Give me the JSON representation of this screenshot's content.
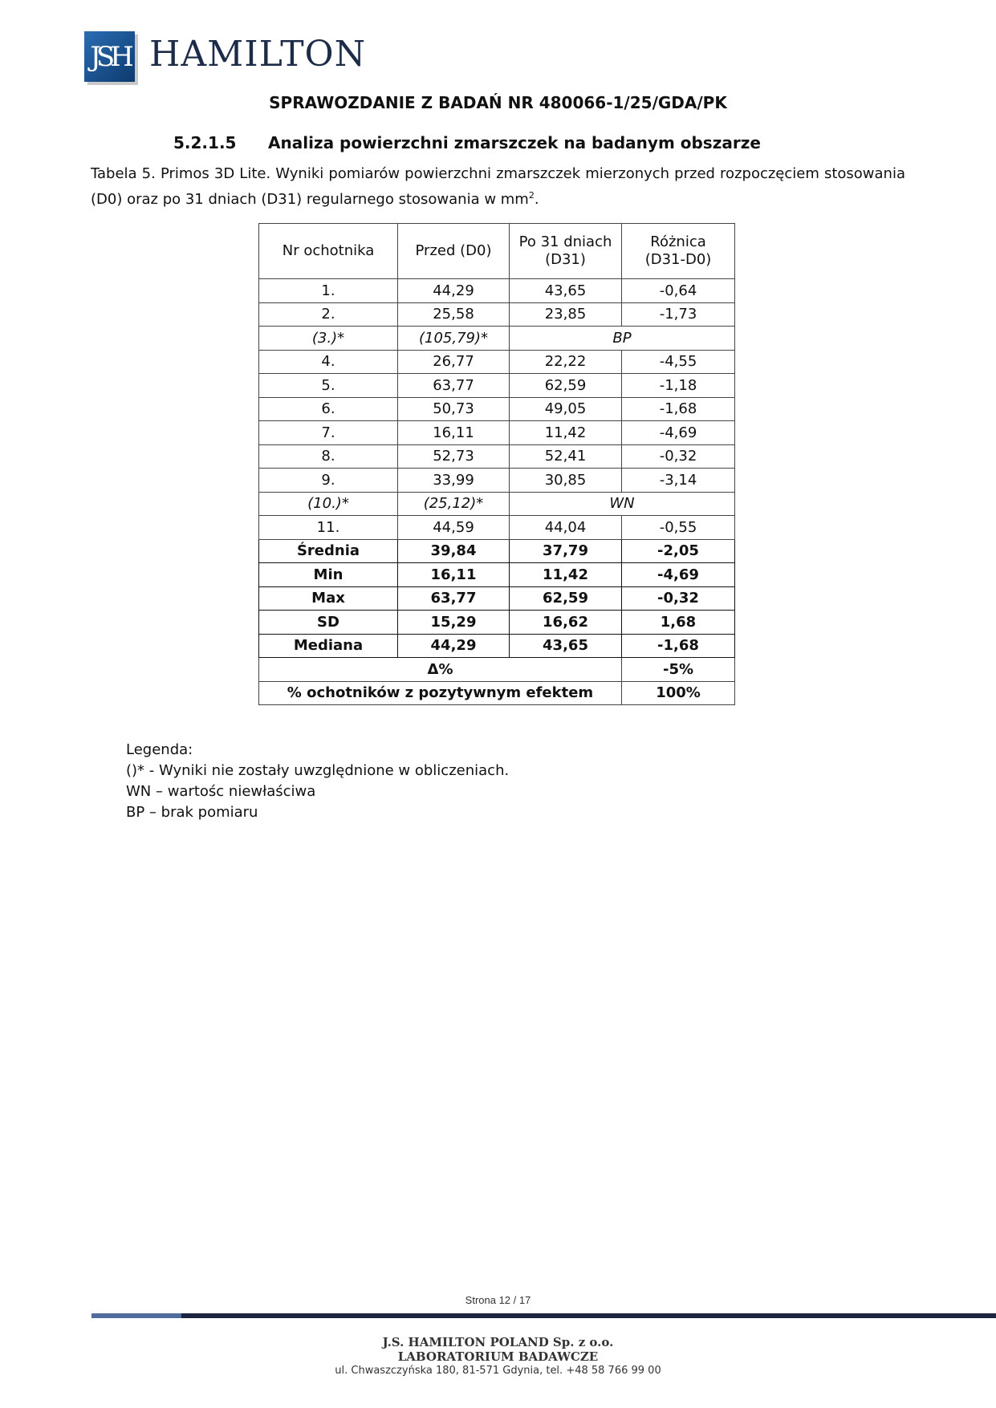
{
  "header": {
    "logo_mark": "JSH",
    "logo_text": "HAMILTON",
    "report_title": "SPRAWOZDANIE Z BADAŃ NR 480066-1/25/GDA/PK"
  },
  "section": {
    "number": "5.2.1.5",
    "title": "Analiza powierzchni zmarszczek na badanym obszarze"
  },
  "caption": {
    "text": "Tabela 5. Primos 3D Lite. Wyniki pomiarów powierzchni zmarszczek mierzonych przed rozpoczęciem stosowania (D0) oraz po 31 dniach (D31) regularnego stosowania w mm",
    "sup": "2",
    "end": "."
  },
  "table": {
    "headers": [
      [
        "Nr ochotnika"
      ],
      [
        "Przed (D0)"
      ],
      [
        "Po 31 dniach",
        "(D31)"
      ],
      [
        "Różnica",
        "(D31-D0)"
      ]
    ],
    "rows": [
      [
        "1.",
        "44,29",
        "43,65",
        "-0,64"
      ],
      [
        "2.",
        "25,58",
        "23,85",
        "-1,73"
      ],
      [
        "(3.)*",
        "(105,79)*",
        "BP"
      ],
      [
        "4.",
        "26,77",
        "22,22",
        "-4,55"
      ],
      [
        "5.",
        "63,77",
        "62,59",
        "-1,18"
      ],
      [
        "6.",
        "50,73",
        "49,05",
        "-1,68"
      ],
      [
        "7.",
        "16,11",
        "11,42",
        "-4,69"
      ],
      [
        "8.",
        "52,73",
        "52,41",
        "-0,32"
      ],
      [
        "9.",
        "33,99",
        "30,85",
        "-3,14"
      ],
      [
        "(10.)*",
        "(25,12)*",
        "WN"
      ],
      [
        "11.",
        "44,59",
        "44,04",
        "-0,55"
      ]
    ],
    "stats": [
      [
        "Średnia",
        "39,84",
        "37,79",
        "-2,05"
      ],
      [
        "Min",
        "16,11",
        "11,42",
        "-4,69"
      ],
      [
        "Max",
        "63,77",
        "62,59",
        "-0,32"
      ],
      [
        "SD",
        "15,29",
        "16,62",
        "1,68"
      ],
      [
        "Mediana",
        "44,29",
        "43,65",
        "-1,68"
      ]
    ],
    "summary": [
      [
        "Δ%",
        "-5%"
      ],
      [
        "% ochotników z pozytywnym efektem",
        "100%"
      ]
    ]
  },
  "legend": [
    "Legenda:",
    "()* - Wyniki nie zostały uwzględnione w obliczeniach.",
    "WN – wartośc niewłaściwa",
    "BP – brak pomiaru"
  ],
  "footer": {
    "page": "Strona 12 / 17",
    "company": "J.S. HAMILTON POLAND Sp. z o.o.",
    "lab": "LABORATORIUM BADAWCZE",
    "address": "ul. Chwaszczyńska 180, 81-571 Gdynia, tel. +48 58 766 99 00"
  },
  "colors": {
    "logo_blue": "#1f5ea0",
    "logo_text": "#1c2c48",
    "footer_bar": "#1c2440",
    "footer_accent": "#4f6c9c"
  }
}
